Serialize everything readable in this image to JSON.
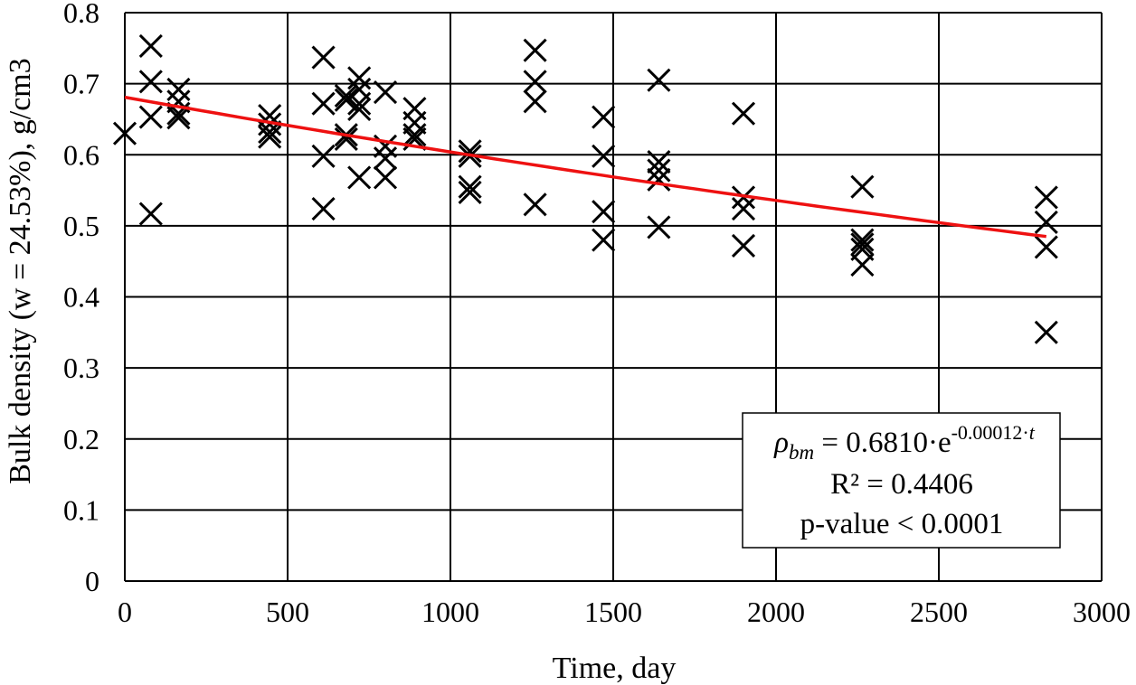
{
  "chart_data": {
    "type": "scatter",
    "xlabel": "Time, day",
    "ylabel": "Bulk density (w = 24.53%), g/cm3",
    "xlim": [
      0,
      3000
    ],
    "ylim": [
      0,
      0.8
    ],
    "x_ticks": [
      0,
      500,
      1000,
      1500,
      2000,
      2500,
      3000
    ],
    "y_ticks": [
      0,
      0.1,
      0.2,
      0.3,
      0.4,
      0.5,
      0.6,
      0.7,
      0.8
    ],
    "x_tick_labels": [
      "0",
      "500",
      "1000",
      "1500",
      "2000",
      "2500",
      "3000"
    ],
    "y_tick_labels": [
      "0",
      "0.1",
      "0.2",
      "0.3",
      "0.4",
      "0.5",
      "0.6",
      "0.7",
      "0.8"
    ],
    "grid": true,
    "marker": "x",
    "points": [
      [
        0,
        0.63
      ],
      [
        80,
        0.753
      ],
      [
        80,
        0.703
      ],
      [
        80,
        0.653
      ],
      [
        80,
        0.517
      ],
      [
        165,
        0.692
      ],
      [
        165,
        0.675
      ],
      [
        165,
        0.658
      ],
      [
        165,
        0.652
      ],
      [
        445,
        0.655
      ],
      [
        445,
        0.643
      ],
      [
        445,
        0.632
      ],
      [
        445,
        0.625
      ],
      [
        610,
        0.737
      ],
      [
        610,
        0.672
      ],
      [
        610,
        0.598
      ],
      [
        610,
        0.524
      ],
      [
        680,
        0.683
      ],
      [
        680,
        0.677
      ],
      [
        680,
        0.628
      ],
      [
        680,
        0.622
      ],
      [
        720,
        0.708
      ],
      [
        720,
        0.692
      ],
      [
        720,
        0.672
      ],
      [
        720,
        0.664
      ],
      [
        720,
        0.568
      ],
      [
        800,
        0.688
      ],
      [
        800,
        0.612
      ],
      [
        800,
        0.595
      ],
      [
        800,
        0.568
      ],
      [
        890,
        0.665
      ],
      [
        890,
        0.645
      ],
      [
        890,
        0.628
      ],
      [
        890,
        0.622
      ],
      [
        1060,
        0.605
      ],
      [
        1060,
        0.598
      ],
      [
        1060,
        0.555
      ],
      [
        1060,
        0.547
      ],
      [
        1260,
        0.747
      ],
      [
        1260,
        0.703
      ],
      [
        1260,
        0.675
      ],
      [
        1260,
        0.53
      ],
      [
        1470,
        0.653
      ],
      [
        1470,
        0.598
      ],
      [
        1470,
        0.52
      ],
      [
        1470,
        0.48
      ],
      [
        1640,
        0.705
      ],
      [
        1640,
        0.59
      ],
      [
        1640,
        0.578
      ],
      [
        1640,
        0.565
      ],
      [
        1640,
        0.498
      ],
      [
        1900,
        0.658
      ],
      [
        1900,
        0.54
      ],
      [
        1900,
        0.524
      ],
      [
        1900,
        0.472
      ],
      [
        2265,
        0.555
      ],
      [
        2265,
        0.48
      ],
      [
        2265,
        0.474
      ],
      [
        2265,
        0.467
      ],
      [
        2265,
        0.445
      ],
      [
        2830,
        0.54
      ],
      [
        2830,
        0.505
      ],
      [
        2830,
        0.47
      ],
      [
        2830,
        0.35
      ]
    ],
    "trendline": {
      "color": "#ee1111",
      "a": 0.681,
      "b": -0.00012,
      "x_range": [
        0,
        2830
      ]
    },
    "annotation": {
      "symbol": "ρ",
      "subscript": "bm",
      "equation": " = 0.6810·e",
      "exponent_prefix": "-0.00012·",
      "exponent_var": "t",
      "r_squared": "R² = 0.4406",
      "p_value": "p-value < 0.0001",
      "placement": "bottom-right"
    }
  }
}
